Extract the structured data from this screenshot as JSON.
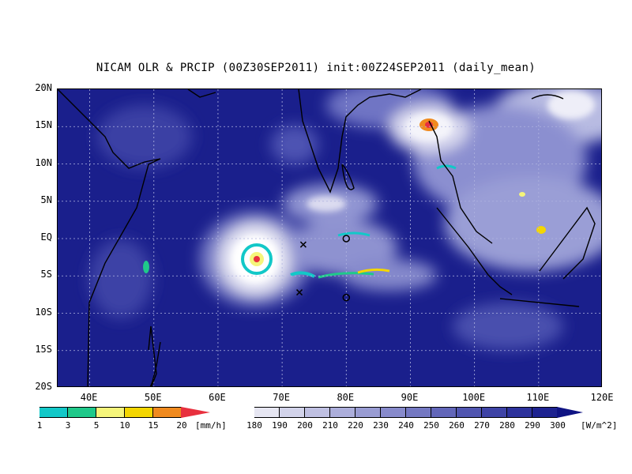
{
  "title": "NICAM OLR & PRCIP (00Z30SEP2011) init:00Z24SEP2011 (daily_mean)",
  "map": {
    "lon_range": [
      35,
      120
    ],
    "lat_range": [
      -20,
      20
    ],
    "lat_labels": [
      "20N",
      "15N",
      "10N",
      "5N",
      "EQ",
      "5S",
      "10S",
      "15S",
      "20S"
    ],
    "lon_labels": [
      "40E",
      "50E",
      "60E",
      "70E",
      "80E",
      "90E",
      "100E",
      "110E",
      "120E"
    ],
    "colors": {
      "ocean_clear": "#1a1f8c",
      "cloud_mid": "#6f74c4",
      "cloud_bright": "#f4f4fa",
      "coast": "#000000",
      "grid": "#b0b4e0"
    }
  },
  "markers": [
    {
      "type": "cross-icon",
      "lon": 73.3,
      "lat": -0.8
    },
    {
      "type": "cross-icon",
      "lon": 72.7,
      "lat": -7.2
    },
    {
      "type": "circle-icon",
      "lon": 80.0,
      "lat": 0.0
    },
    {
      "type": "circle-icon",
      "lon": 80.0,
      "lat": -7.9
    }
  ],
  "precip_colorbar": {
    "ticks": [
      "1",
      "3",
      "5",
      "10",
      "15",
      "20"
    ],
    "unit": "[mm/h]",
    "colors": [
      "#ffffff",
      "#12c8c8",
      "#1fc98a",
      "#f5f57a",
      "#f4d600",
      "#f08a1e",
      "#e8303e"
    ]
  },
  "olr_colorbar": {
    "ticks": [
      "180",
      "190",
      "200",
      "210",
      "220",
      "230",
      "240",
      "250",
      "260",
      "270",
      "280",
      "290",
      "300"
    ],
    "unit": "[W/m^2]",
    "colors": [
      "#ffffff",
      "#e6e6f2",
      "#d2d3ea",
      "#bfc0e2",
      "#acaedb",
      "#999cd3",
      "#878acb",
      "#7478c2",
      "#6266b9",
      "#5055b0",
      "#3e43a6",
      "#2d329c",
      "#1d2290",
      "#0f1383"
    ]
  }
}
